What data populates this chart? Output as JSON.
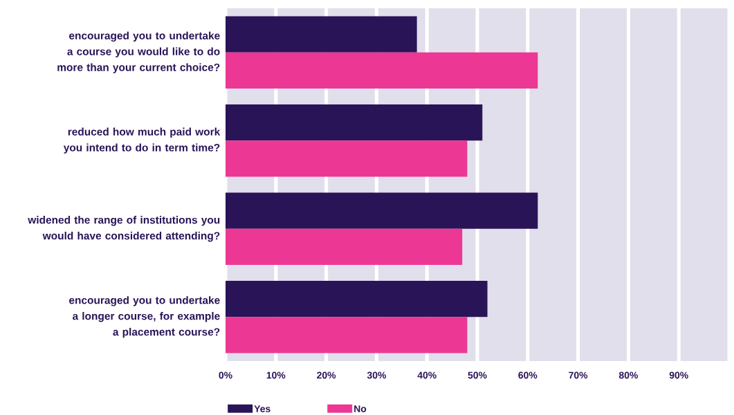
{
  "chart_data": {
    "type": "bar",
    "orientation": "horizontal",
    "categories": [
      "encouraged you to undertake a course you would like to do more than your current choice?",
      "reduced how much paid work you intend to do in term time?",
      "widened the range of institutions you would have considered attending?",
      "encouraged you to undertake a longer course, for example a placement course?"
    ],
    "series": [
      {
        "name": "Yes",
        "color": "#2a1458",
        "values": [
          38,
          51,
          62,
          52
        ]
      },
      {
        "name": "No",
        "color": "#ec3794",
        "values": [
          62,
          48,
          47,
          48
        ]
      }
    ],
    "xlim": [
      0,
      100
    ],
    "xticks": [
      {
        "value": 0,
        "label": "0%"
      },
      {
        "value": 10,
        "label": "10%"
      },
      {
        "value": 20,
        "label": "20%"
      },
      {
        "value": 30,
        "label": "30%"
      },
      {
        "value": 40,
        "label": "40%"
      },
      {
        "value": 50,
        "label": "50%"
      },
      {
        "value": 60,
        "label": "60%"
      },
      {
        "value": 70,
        "label": "70%"
      },
      {
        "value": 80,
        "label": "80%"
      },
      {
        "value": 90,
        "label": "90%"
      },
      {
        "value": 100,
        "label": null
      }
    ],
    "grid": "x",
    "legend": "bottom left"
  }
}
